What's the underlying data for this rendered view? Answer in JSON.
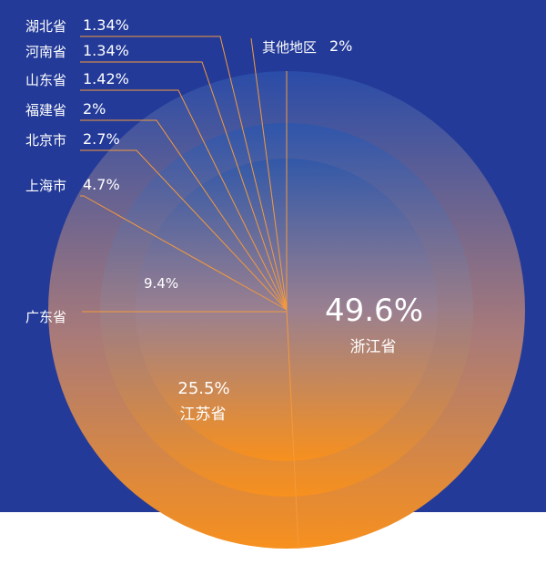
{
  "chart_data": {
    "type": "pie",
    "title": "",
    "slices": [
      {
        "label": "浙江省",
        "value": 49.6,
        "value_text": "49.6%"
      },
      {
        "label": "江苏省",
        "value": 25.5,
        "value_text": "25.5%"
      },
      {
        "label": "广东省",
        "value": 9.4,
        "value_text": "9.4%"
      },
      {
        "label": "上海市",
        "value": 4.7,
        "value_text": "4.7%"
      },
      {
        "label": "北京市",
        "value": 2.7,
        "value_text": "2.7%"
      },
      {
        "label": "福建省",
        "value": 2,
        "value_text": "2%"
      },
      {
        "label": "山东省",
        "value": 1.42,
        "value_text": "1.42%"
      },
      {
        "label": "河南省",
        "value": 1.34,
        "value_text": "1.34%"
      },
      {
        "label": "湖北省",
        "value": 1.34,
        "value_text": "1.34%"
      },
      {
        "label": "其他地区",
        "value": 2,
        "value_text": "2%"
      }
    ],
    "legend": "none",
    "labels": "callouts"
  },
  "colors": {
    "background": "#233a98",
    "gradient_top": "#2d54b0",
    "gradient_bottom": "#f7901e",
    "leader_line": "#f49a3c",
    "text": "#ffffff",
    "bottom_band": "#ffffff"
  }
}
